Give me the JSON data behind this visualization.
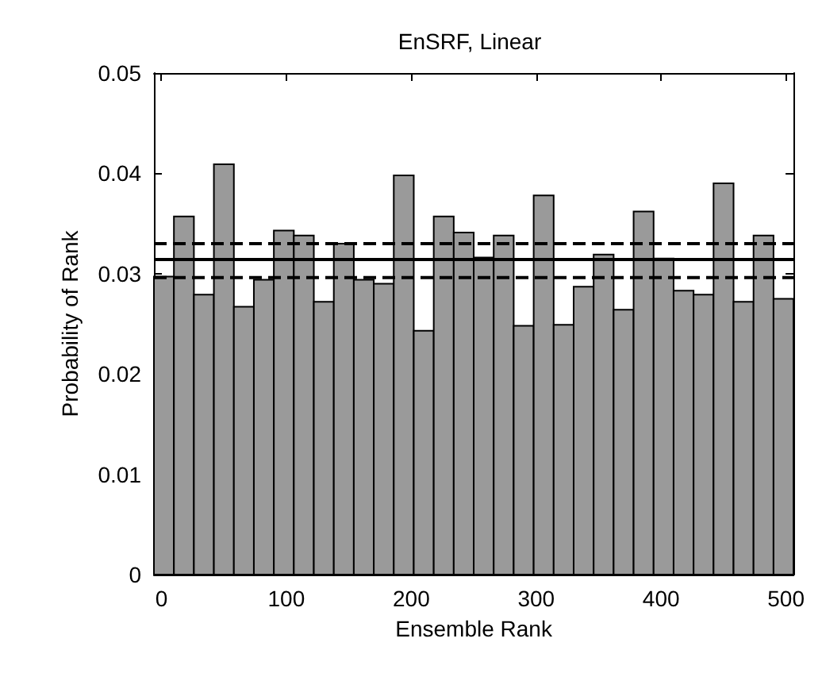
{
  "chart_data": {
    "type": "histogram",
    "title": "EnSRF, Linear",
    "xlabel": "Ensemble Rank",
    "ylabel": "Probability of Rank",
    "bins": [
      -6,
      10,
      26,
      42,
      58,
      74,
      90,
      106,
      122,
      138,
      154,
      170,
      186,
      202,
      218,
      234,
      250,
      266,
      282,
      298,
      314,
      330,
      346,
      362,
      378,
      394,
      410,
      426,
      442,
      458,
      474,
      490,
      506
    ],
    "values": [
      0.0297,
      0.0357,
      0.0279,
      0.0409,
      0.0267,
      0.0294,
      0.0343,
      0.0338,
      0.0272,
      0.033,
      0.0294,
      0.029,
      0.0398,
      0.0243,
      0.0357,
      0.0341,
      0.0316,
      0.0338,
      0.0248,
      0.0378,
      0.0249,
      0.0287,
      0.0319,
      0.0264,
      0.0362,
      0.0315,
      0.0283,
      0.0279,
      0.039,
      0.0272,
      0.0338,
      0.0275
    ],
    "color": "#9a9a9a",
    "xlim": [
      -6,
      506
    ],
    "xticks": [
      0,
      100,
      200,
      300,
      400,
      500
    ],
    "ylim": [
      0,
      0.05
    ],
    "yticks": [
      0,
      0.01,
      0.02,
      0.03,
      0.04,
      0.05
    ],
    "grid": false,
    "legend": false,
    "ref_lines": [
      {
        "axis": "y",
        "value": 0.0314,
        "line_style": "solid",
        "color": "#000000"
      },
      {
        "axis": "y",
        "value": 0.033,
        "line_style": "dashed",
        "color": "#000000"
      },
      {
        "axis": "y",
        "value": 0.0296,
        "line_style": "dashed",
        "color": "#000000"
      }
    ]
  }
}
